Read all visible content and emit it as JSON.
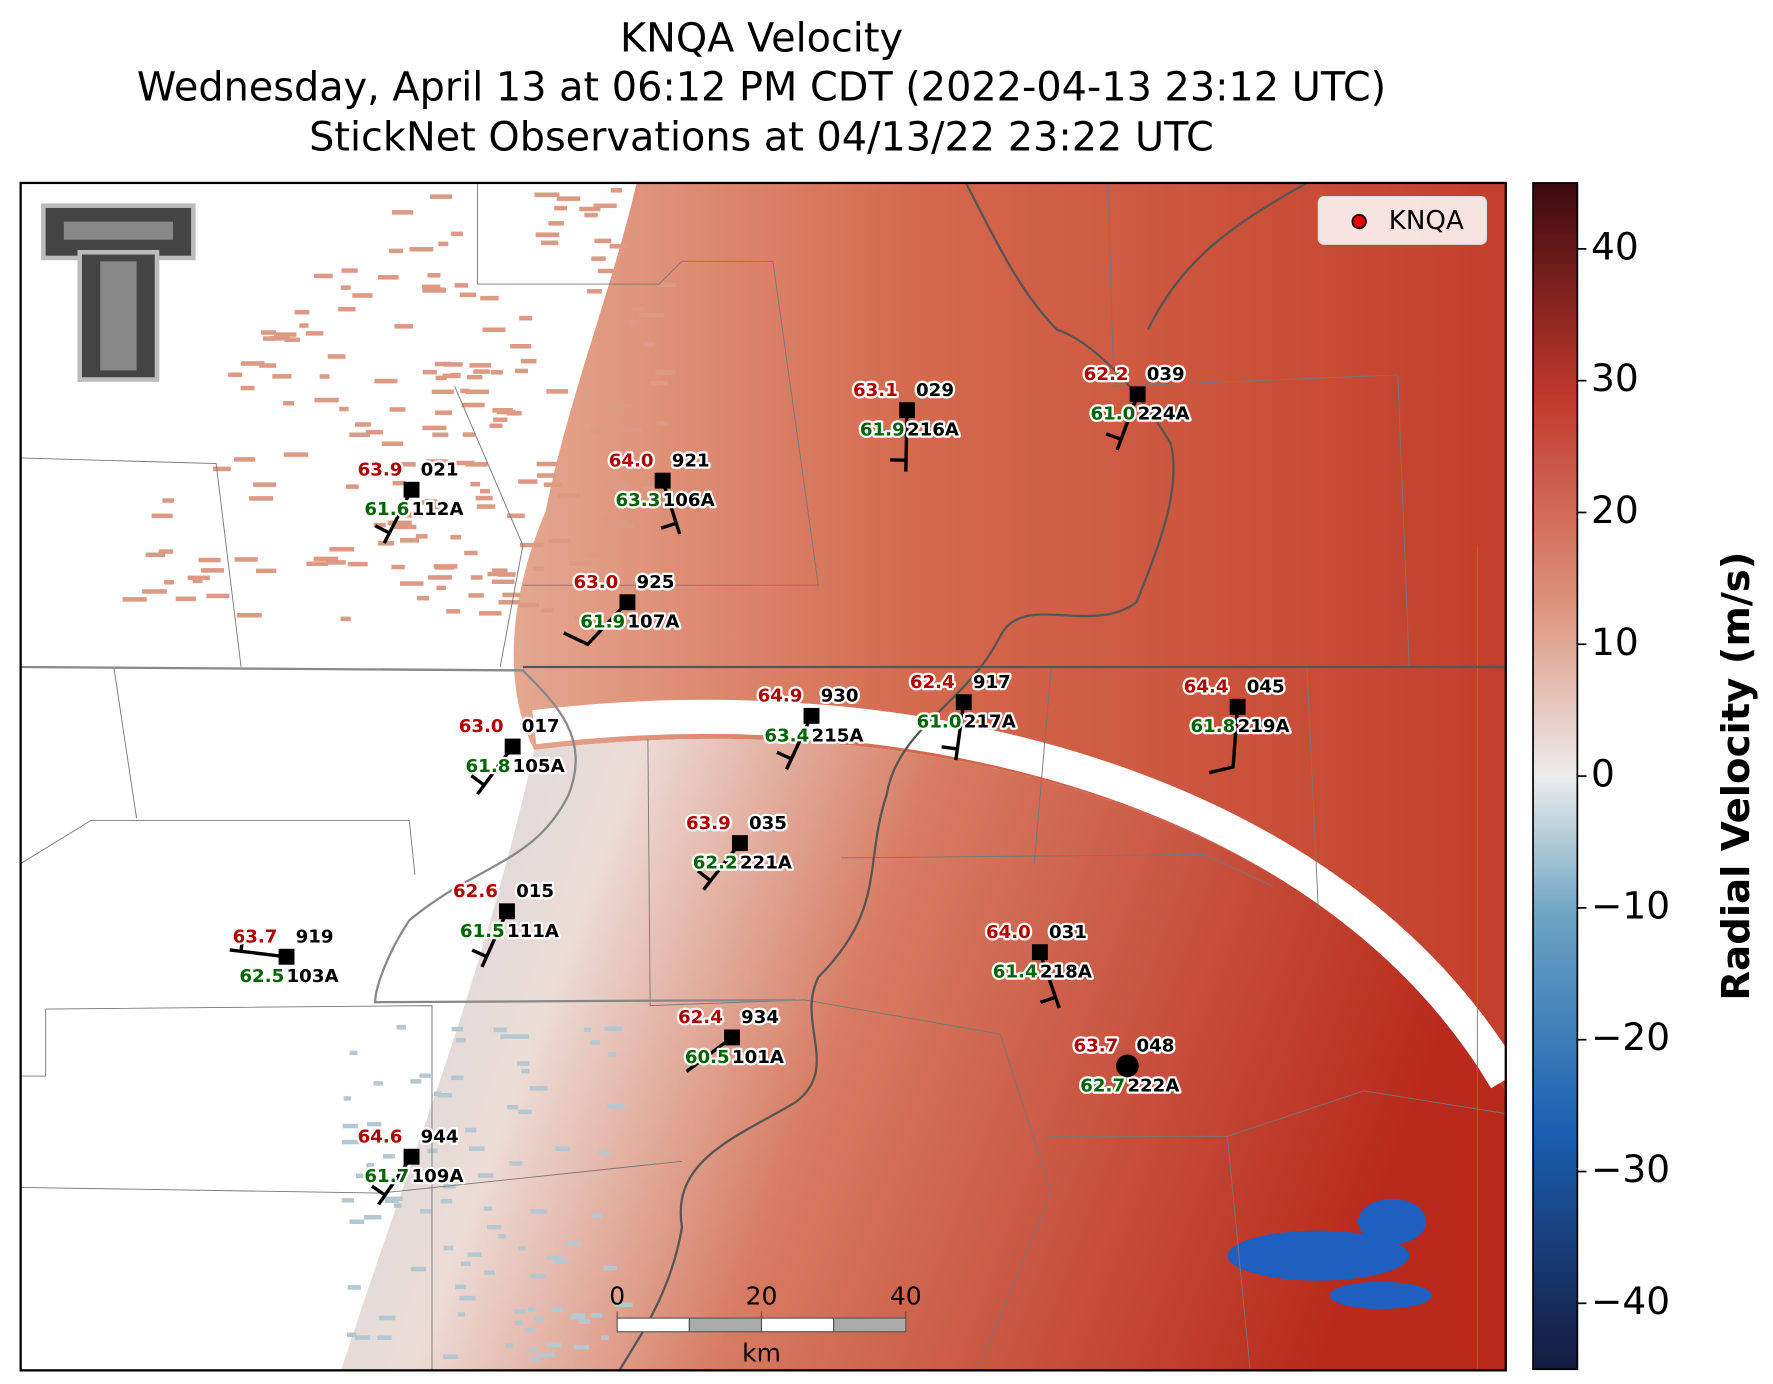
{
  "title": [
    "KNQA Velocity",
    "Wednesday, April 13 at 06:12 PM CDT (2022-04-13 23:12 UTC)",
    "StickNet Observations at 04/13/22 23:22 UTC"
  ],
  "legend": {
    "label": "KNQA"
  },
  "colorbar": {
    "label": "Radial Velocity (m/s)",
    "lim": [
      -45,
      45
    ],
    "ticks": [
      40,
      30,
      20,
      10,
      0,
      {
        "value": -10,
        "label": "−10"
      },
      {
        "value": -20,
        "label": "−20"
      },
      {
        "value": -30,
        "label": "−30"
      },
      {
        "value": -40,
        "label": "−40"
      }
    ]
  },
  "scalebar": {
    "ticks": [
      0,
      20,
      40
    ],
    "unit": "km"
  },
  "stations": [
    {
      "number": "021",
      "id": "112A",
      "temperature": "63.9",
      "dewpoint": "61.6"
    },
    {
      "number": "921",
      "id": "106A",
      "temperature": "64.0",
      "dewpoint": "63.3"
    },
    {
      "number": "029",
      "id": "216A",
      "temperature": "63.1",
      "dewpoint": "61.9"
    },
    {
      "number": "039",
      "id": "224A",
      "temperature": "62.2",
      "dewpoint": "61.0"
    },
    {
      "number": "925",
      "id": "107A",
      "temperature": "63.0",
      "dewpoint": "61.9"
    },
    {
      "number": "930",
      "id": "215A",
      "temperature": "64.9",
      "dewpoint": "63.4"
    },
    {
      "number": "917",
      "id": "217A",
      "temperature": "62.4",
      "dewpoint": "61.0"
    },
    {
      "number": "045",
      "id": "219A",
      "temperature": "64.4",
      "dewpoint": "61.8"
    },
    {
      "number": "017",
      "id": "105A",
      "temperature": "63.0",
      "dewpoint": "61.8"
    },
    {
      "number": "035",
      "id": "221A",
      "temperature": "63.9",
      "dewpoint": "62.2"
    },
    {
      "number": "015",
      "id": "111A",
      "temperature": "62.6",
      "dewpoint": "61.5"
    },
    {
      "number": "919",
      "id": "103A",
      "temperature": "63.7",
      "dewpoint": "62.5"
    },
    {
      "number": "031",
      "id": "218A",
      "temperature": "64.0",
      "dewpoint": "61.4"
    },
    {
      "number": "934",
      "id": "101A",
      "temperature": "62.4",
      "dewpoint": "60.5"
    },
    {
      "number": "048",
      "id": "222A",
      "temperature": "63.7",
      "dewpoint": "62.7"
    },
    {
      "number": "944",
      "id": "109A",
      "temperature": "64.6",
      "dewpoint": "61.7"
    }
  ]
}
